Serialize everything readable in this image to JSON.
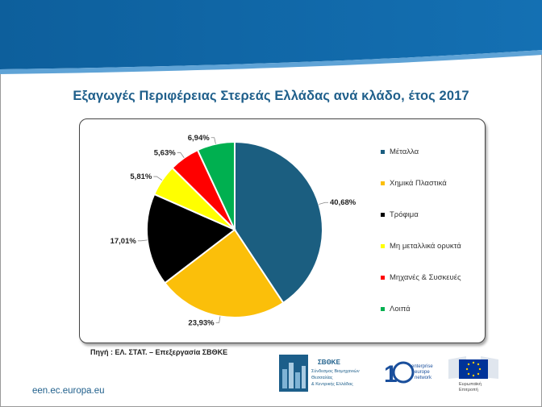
{
  "title": "Εξαγωγές Περιφέρειας Στερεάς Ελλάδας ανά κλάδο, έτος 2017",
  "source": "Πηγή : ΕΛ. ΣΤΑΤ. – Επεξεργασία ΣΒΘΚΕ",
  "footer_url": "een.ec.europa.eu",
  "logos": {
    "sbvthe_name": "ΣΒΘΚΕ",
    "sbvthe_lines": [
      "Σύνδεσμος Βιομηχανιών",
      "Θεσσαλίας",
      "& Κεντρικής Ελλάδας"
    ],
    "een_lines": [
      "enterprise",
      "europe",
      "network"
    ],
    "ec_caption": [
      "Ευρωπαϊκή",
      "Επιτροπή"
    ]
  },
  "chart_data": {
    "type": "pie",
    "title": "Εξαγωγές Περιφέρειας Στερεάς Ελλάδας ανά κλάδο, έτος 2017",
    "categories": [
      "Μέταλλα",
      "Χημικά Πλαστικά",
      "Τρόφιμα",
      "Μη μεταλλικά ορυκτά",
      "Μηχανές & Συσκευές",
      "Λοιπά"
    ],
    "values": [
      40.68,
      23.93,
      17.01,
      5.81,
      5.63,
      6.94
    ],
    "labels": [
      "40,68%",
      "23,93%",
      "17,01%",
      "5,81%",
      "5,63%",
      "6,94%"
    ],
    "colors": [
      "#1b5e80",
      "#fbbf0a",
      "#000000",
      "#ffff00",
      "#ff0000",
      "#00b050"
    ],
    "legend_position": "right"
  }
}
